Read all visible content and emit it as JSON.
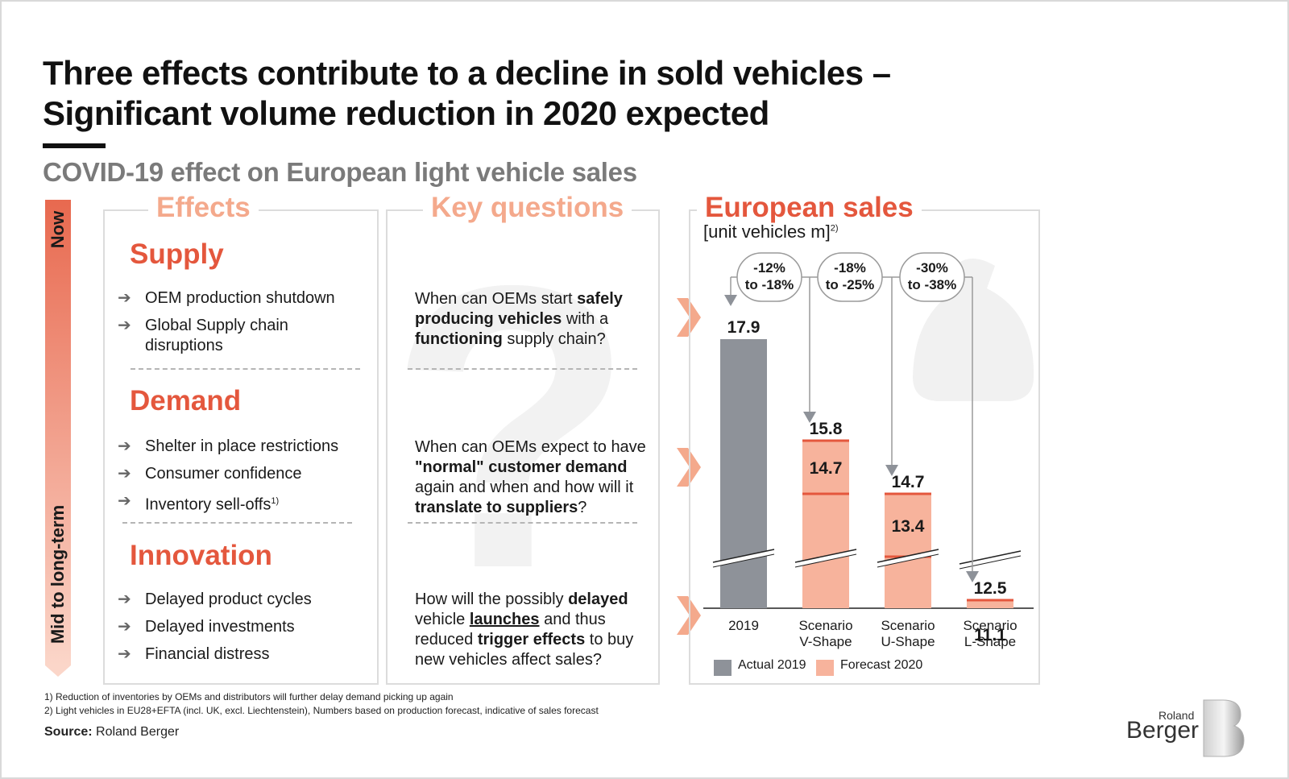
{
  "title_line1": "Three effects contribute to a decline in sold vehicles –",
  "title_line2": "Significant volume reduction in 2020 expected",
  "subtitle": "COVID-19 effect on European light vehicle sales",
  "timeline": {
    "top_label": "Now",
    "bottom_label": "Mid to  long-term"
  },
  "effects": {
    "heading": "Effects",
    "groups": [
      {
        "title": "Supply",
        "items": [
          "OEM production shutdown",
          "Global Supply chain",
          "disruptions"
        ]
      },
      {
        "title": "Demand",
        "items": [
          "Shelter in place restrictions",
          "Consumer confidence",
          "Inventory sell-offs"
        ],
        "footnote_mark": "1)"
      },
      {
        "title": "Innovation",
        "items": [
          "Delayed product cycles",
          "Delayed investments",
          "Financial distress"
        ]
      }
    ]
  },
  "questions": {
    "heading": "Key questions",
    "q1": {
      "a": "When can OEMs start ",
      "b": "safely",
      "c": "producing vehicles",
      "d": " with a",
      "e": "functioning",
      "f": " supply chain?"
    },
    "q2": {
      "a": "When can OEMs expect to have",
      "b": "\"normal\" customer demand",
      "c": "again and when and how will it",
      "d": "translate to suppliers",
      "e": "?"
    },
    "q3": {
      "a": "How will the possibly ",
      "b": "delayed",
      "c": "vehicle ",
      "d": "launches",
      "e": " and thus",
      "f": "reduced ",
      "g": "trigger effects",
      "h": " to buy",
      "i": "new vehicles affect sales?"
    }
  },
  "chart_panel": {
    "heading": "European sales",
    "unit": "[unit vehicles m]",
    "unit_mark": "2)"
  },
  "chart_data": {
    "type": "bar",
    "title": "European sales",
    "ylabel": "[unit vehicles m]",
    "categories": [
      "2019",
      "Scenario V-Shape",
      "Scenario U-Shape",
      "Scenario L-Shape"
    ],
    "category_labels": [
      [
        "2019"
      ],
      [
        "Scenario",
        "V-Shape"
      ],
      [
        "Scenario",
        "U-Shape"
      ],
      [
        "Scenario",
        "L-Shape"
      ]
    ],
    "actual": [
      17.9,
      null,
      null,
      null
    ],
    "forecast_high": [
      null,
      15.8,
      14.7,
      12.5
    ],
    "forecast_low": [
      null,
      14.7,
      13.4,
      11.1
    ],
    "ranges": [
      {
        "line1": "-12%",
        "line2": "to -18%"
      },
      {
        "line1": "-18%",
        "line2": "to -25%"
      },
      {
        "line1": "-30%",
        "line2": "to -38%"
      }
    ],
    "legend": [
      {
        "label": "Actual 2019",
        "color": "#8e9299"
      },
      {
        "label": "Forecast 2020",
        "color": "#f7b39c"
      }
    ],
    "axis_break": true,
    "colors": {
      "actual": "#8e9299",
      "forecast": "#f7b39c",
      "line": "#e4573d"
    }
  },
  "footnotes": [
    "1) Reduction of inventories by OEMs and distributors will further delay demand picking up again",
    "2) Light vehicles in EU28+EFTA (incl. UK, excl. Liechtenstein), Numbers based on production forecast, indicative of sales forecast"
  ],
  "source": {
    "label": "Source:",
    "value": " Roland Berger"
  },
  "logo": {
    "line1": "Roland",
    "line2": "Berger"
  }
}
